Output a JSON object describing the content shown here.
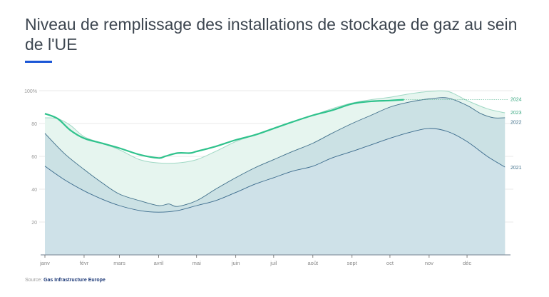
{
  "title": "Niveau de remplissage des installations de stockage de gaz au sein de l'UE",
  "source_label": "Source:",
  "source_name": "Gas Infrastructure Europe",
  "colors": {
    "accent": "#1a56d6",
    "s2024": "#2fc28c",
    "s2023": "#9fd8c4",
    "s2022": "#3f6f8a",
    "s2021": "#3a6a8c"
  },
  "chart_data": {
    "type": "area",
    "ylim": [
      0,
      100
    ],
    "yticks": [
      {
        "v": 20,
        "label": "20"
      },
      {
        "v": 40,
        "label": "40"
      },
      {
        "v": 60,
        "label": "60"
      },
      {
        "v": 80,
        "label": "80"
      },
      {
        "v": 100,
        "label": "100%"
      }
    ],
    "xticks": [
      {
        "doy": 0,
        "label": "janv"
      },
      {
        "doy": 31,
        "label": "févr"
      },
      {
        "doy": 59,
        "label": "mars"
      },
      {
        "doy": 90,
        "label": "avril"
      },
      {
        "doy": 120,
        "label": "mai"
      },
      {
        "doy": 151,
        "label": "juin"
      },
      {
        "doy": 181,
        "label": "juil"
      },
      {
        "doy": 212,
        "label": "août"
      },
      {
        "doy": 243,
        "label": "sept"
      },
      {
        "doy": 273,
        "label": "oct"
      },
      {
        "doy": 304,
        "label": "nov"
      },
      {
        "doy": 334,
        "label": "déc"
      }
    ],
    "series": [
      {
        "name": "2023",
        "label": "2023",
        "x": [
          0,
          10,
          20,
          31,
          45,
          59,
          75,
          90,
          105,
          120,
          135,
          151,
          166,
          181,
          196,
          212,
          227,
          243,
          258,
          273,
          288,
          304,
          319,
          334,
          350,
          364
        ],
        "y": [
          83.5,
          83,
          79,
          72,
          68,
          64,
          58,
          56,
          56,
          58,
          63,
          69,
          73,
          77,
          81,
          85,
          89,
          92.5,
          94.5,
          96,
          98,
          99.5,
          99.5,
          94,
          89,
          86.5
        ]
      },
      {
        "name": "2022",
        "label": "2022",
        "x": [
          0,
          15,
          31,
          45,
          59,
          75,
          90,
          98,
          105,
          120,
          135,
          151,
          166,
          181,
          196,
          212,
          227,
          243,
          258,
          273,
          288,
          304,
          319,
          334,
          345,
          355,
          364
        ],
        "y": [
          74,
          62,
          52,
          44,
          37,
          33,
          30,
          31,
          29.5,
          33,
          40,
          47,
          53,
          58,
          63,
          68,
          74,
          80,
          85,
          90,
          93,
          95,
          95.5,
          91,
          86,
          83.5,
          83.5
        ]
      },
      {
        "name": "2021",
        "label": "2021",
        "x": [
          0,
          15,
          31,
          45,
          59,
          75,
          90,
          105,
          120,
          135,
          151,
          166,
          181,
          196,
          212,
          227,
          243,
          258,
          273,
          288,
          304,
          319,
          334,
          350,
          364
        ],
        "y": [
          54,
          46,
          39,
          34,
          30,
          27,
          26,
          27,
          30,
          33,
          38,
          43,
          47,
          51,
          54,
          59,
          63,
          67,
          71,
          74.5,
          77,
          75,
          69,
          60,
          53.5
        ]
      },
      {
        "name": "2024",
        "label": "2024",
        "x": [
          0,
          10,
          20,
          31,
          45,
          59,
          75,
          90,
          95,
          105,
          115,
          120,
          135,
          151,
          166,
          181,
          196,
          212,
          227,
          243,
          258,
          273,
          284
        ],
        "y": [
          86,
          83,
          76,
          71,
          68,
          65,
          61,
          59,
          60,
          62,
          62,
          63,
          66,
          70,
          73,
          77,
          81,
          85,
          88,
          92,
          93.5,
          94,
          94.5
        ]
      }
    ]
  }
}
